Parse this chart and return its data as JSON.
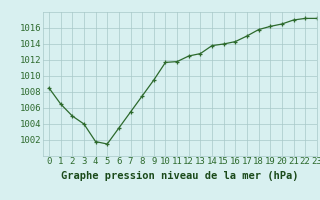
{
  "x": [
    0,
    1,
    2,
    3,
    4,
    5,
    6,
    7,
    8,
    9,
    10,
    11,
    12,
    13,
    14,
    15,
    16,
    17,
    18,
    19,
    20,
    21,
    22,
    23
  ],
  "y": [
    1008.5,
    1006.5,
    1005.0,
    1004.0,
    1001.8,
    1001.5,
    1003.5,
    1005.5,
    1007.5,
    1009.5,
    1011.7,
    1011.8,
    1012.5,
    1012.8,
    1013.8,
    1014.0,
    1014.3,
    1015.0,
    1015.8,
    1016.2,
    1016.5,
    1017.0,
    1017.2,
    1017.2
  ],
  "line_color": "#2d6a2d",
  "marker_color": "#2d6a2d",
  "bg_color": "#d8f0f0",
  "grid_color": "#a8c8c8",
  "xlabel": "Graphe pression niveau de la mer (hPa)",
  "xlabel_color": "#1a4a1a",
  "ylim": [
    1000,
    1018
  ],
  "xlim": [
    -0.5,
    23
  ],
  "yticks": [
    1002,
    1004,
    1006,
    1008,
    1010,
    1012,
    1014,
    1016
  ],
  "xticks": [
    0,
    1,
    2,
    3,
    4,
    5,
    6,
    7,
    8,
    9,
    10,
    11,
    12,
    13,
    14,
    15,
    16,
    17,
    18,
    19,
    20,
    21,
    22,
    23
  ],
  "tick_color": "#2d6a2d",
  "font_size_xlabel": 7.5,
  "font_size_ticks": 6.5
}
